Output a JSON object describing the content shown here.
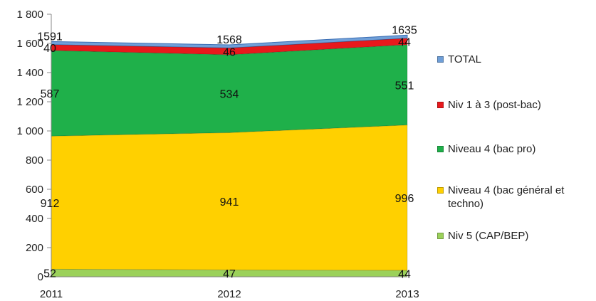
{
  "chart_data": {
    "type": "area",
    "categories": [
      "2011",
      "2012",
      "2013"
    ],
    "ylim": [
      0,
      1800
    ],
    "yticks": [
      "0",
      "200",
      "400",
      "600",
      "800",
      "1 000",
      "1 200",
      "1 400",
      "1 600",
      "1 800"
    ],
    "grid": false,
    "legend_position": "right",
    "series": [
      {
        "name": "Niv 5 (CAP/BEP)",
        "values": [
          52,
          47,
          44
        ],
        "labels": [
          "52",
          "47",
          "44"
        ],
        "color": "#9bd15a"
      },
      {
        "name": "Niveau 4 (bac général et techno)",
        "values": [
          912,
          941,
          996
        ],
        "labels": [
          "912",
          "941",
          "996"
        ],
        "color": "#ffd000"
      },
      {
        "name": "Niveau 4 (bac pro)",
        "values": [
          587,
          534,
          551
        ],
        "labels": [
          "587",
          "534",
          "551"
        ],
        "color": "#1fb04a"
      },
      {
        "name": "Niv 1 à 3 (post-bac)",
        "values": [
          40,
          46,
          44
        ],
        "labels": [
          "40",
          "46",
          "44"
        ],
        "color": "#e8191c"
      },
      {
        "name": "TOTAL",
        "values": [
          1591,
          1568,
          1635
        ],
        "labels": [
          "1591",
          "1568",
          "1635"
        ],
        "color": "#6f9fd8"
      }
    ],
    "legend_order": [
      "TOTAL",
      "Niv 1 à 3 (post-bac)",
      "Niveau 4 (bac pro)",
      "Niveau 4 (bac général et techno)",
      "Niv 5 (CAP/BEP)"
    ]
  }
}
